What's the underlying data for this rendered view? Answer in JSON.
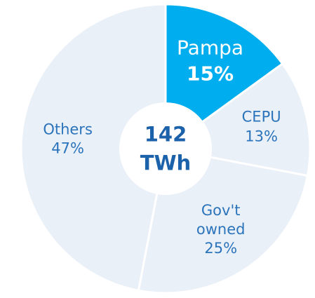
{
  "chart_data": {
    "type": "donut",
    "categories": [
      "Pampa",
      "CEPU",
      "Gov't owned",
      "Others"
    ],
    "values": [
      15,
      13,
      25,
      47
    ],
    "value_labels": [
      "15%",
      "13%",
      "25%",
      "47%"
    ],
    "colors": [
      "#00aeef",
      "#eaf0f8",
      "#eaf0f8",
      "#eaf0f8"
    ],
    "text_colors": [
      "#ffffff",
      "#2b74bb",
      "#2b74bb",
      "#2b74bb"
    ],
    "total": 142,
    "total_unit": "TWh"
  }
}
